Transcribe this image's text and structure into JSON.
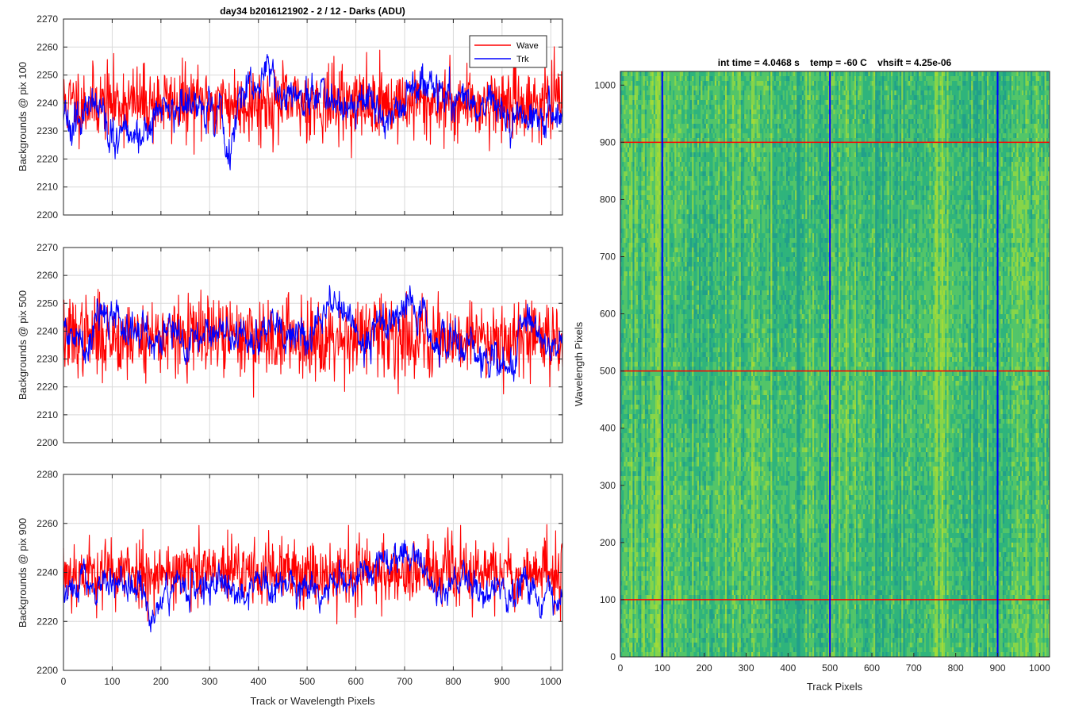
{
  "colors": {
    "wave": "#ff0000",
    "trk": "#0000ff",
    "grid": "#d9d9d9",
    "axis": "#262626"
  },
  "chart_data": [
    {
      "type": "line",
      "title": "day34 b2016121902 - 2 / 12 - Darks (ADU)",
      "ylabel": "Backgrounds @ pix 100",
      "xlabel": "",
      "xlim": [
        0,
        1024
      ],
      "ylim": [
        2200,
        2270
      ],
      "xticks": [
        "0",
        "100",
        "200",
        "300",
        "400",
        "500",
        "600",
        "700",
        "800",
        "900",
        "1000"
      ],
      "yticks": [
        "2200",
        "2210",
        "2220",
        "2230",
        "2240",
        "2250",
        "2260",
        "2270"
      ],
      "show_xtick_labels": false,
      "legend": {
        "position": "top-right",
        "entries": [
          "Wave",
          "Trk"
        ]
      },
      "series": [
        {
          "name": "Wave",
          "mean": 2240,
          "sd": 6.5,
          "seed": 11,
          "smooth": 0.0,
          "features": []
        },
        {
          "name": "Trk",
          "mean": 2238,
          "sd": 5.5,
          "seed": 23,
          "smooth": 0.85,
          "features": [
            {
              "x": 120,
              "w": 60,
              "dy": -12
            },
            {
              "x": 340,
              "w": 12,
              "dy": -20
            },
            {
              "x": 420,
              "w": 60,
              "dy": 8
            },
            {
              "x": 740,
              "w": 60,
              "dy": 6
            }
          ]
        }
      ]
    },
    {
      "type": "line",
      "title": "",
      "ylabel": "Backgrounds @ pix 500",
      "xlabel": "",
      "xlim": [
        0,
        1024
      ],
      "ylim": [
        2200,
        2270
      ],
      "xticks": [
        "0",
        "100",
        "200",
        "300",
        "400",
        "500",
        "600",
        "700",
        "800",
        "900",
        "1000"
      ],
      "yticks": [
        "2200",
        "2210",
        "2220",
        "2230",
        "2240",
        "2250",
        "2260",
        "2270"
      ],
      "show_xtick_labels": false,
      "series": [
        {
          "name": "Wave",
          "mean": 2238,
          "sd": 7,
          "seed": 37,
          "smooth": 0.0,
          "features": []
        },
        {
          "name": "Trk",
          "mean": 2238,
          "sd": 5.5,
          "seed": 41,
          "smooth": 0.85,
          "features": [
            {
              "x": 80,
              "w": 40,
              "dy": 8
            },
            {
              "x": 560,
              "w": 50,
              "dy": 9
            },
            {
              "x": 700,
              "w": 40,
              "dy": 12
            },
            {
              "x": 880,
              "w": 60,
              "dy": -10
            }
          ]
        }
      ]
    },
    {
      "type": "line",
      "title": "",
      "ylabel": "Backgrounds @ pix 900",
      "xlabel": "Track or Wavelength Pixels",
      "xlim": [
        0,
        1024
      ],
      "ylim": [
        2200,
        2280
      ],
      "xticks": [
        "0",
        "100",
        "200",
        "300",
        "400",
        "500",
        "600",
        "700",
        "800",
        "900",
        "1000"
      ],
      "yticks": [
        "2200",
        "2220",
        "2240",
        "2260",
        "2280"
      ],
      "show_xtick_labels": true,
      "series": [
        {
          "name": "Wave",
          "mean": 2240,
          "sd": 7,
          "seed": 53,
          "smooth": 0.0,
          "features": []
        },
        {
          "name": "Trk",
          "mean": 2234,
          "sd": 5.5,
          "seed": 67,
          "smooth": 0.85,
          "features": [
            {
              "x": 180,
              "w": 40,
              "dy": -10
            },
            {
              "x": 700,
              "w": 70,
              "dy": 16
            },
            {
              "x": 760,
              "w": 30,
              "dy": -8
            }
          ]
        }
      ]
    },
    {
      "type": "heatmap",
      "title": "int time = 4.0468 s    temp = -60 C    vhsift = 4.25e-06",
      "xlabel": "Track Pixels",
      "ylabel": "Wavelength Pixels",
      "xlim": [
        0,
        1024
      ],
      "ylim": [
        0,
        1024
      ],
      "xticks": [
        "0",
        "100",
        "200",
        "300",
        "400",
        "500",
        "600",
        "700",
        "800",
        "900",
        "1000"
      ],
      "yticks": [
        "0",
        "100",
        "200",
        "300",
        "400",
        "500",
        "600",
        "700",
        "800",
        "900",
        "1000"
      ],
      "vertical_markers": [
        100,
        500,
        900
      ],
      "horizontal_markers": [
        100,
        500,
        900
      ],
      "colormap": [
        "#21a08a",
        "#2fb47c",
        "#52c569",
        "#86d549",
        "#a0da39"
      ]
    }
  ]
}
